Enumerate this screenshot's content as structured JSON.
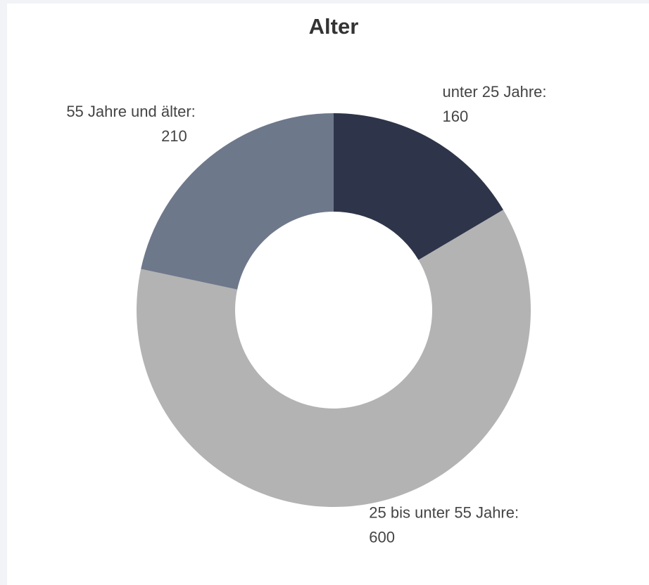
{
  "chart_data": {
    "type": "donut",
    "title": "Alter",
    "categories": [
      "unter 25 Jahre:",
      "25 bis unter 55 Jahre:",
      "55 Jahre und älter:"
    ],
    "values": [
      160,
      600,
      210
    ],
    "colors": [
      "#2e354a",
      "#b3b3b3",
      "#6e788b"
    ]
  }
}
